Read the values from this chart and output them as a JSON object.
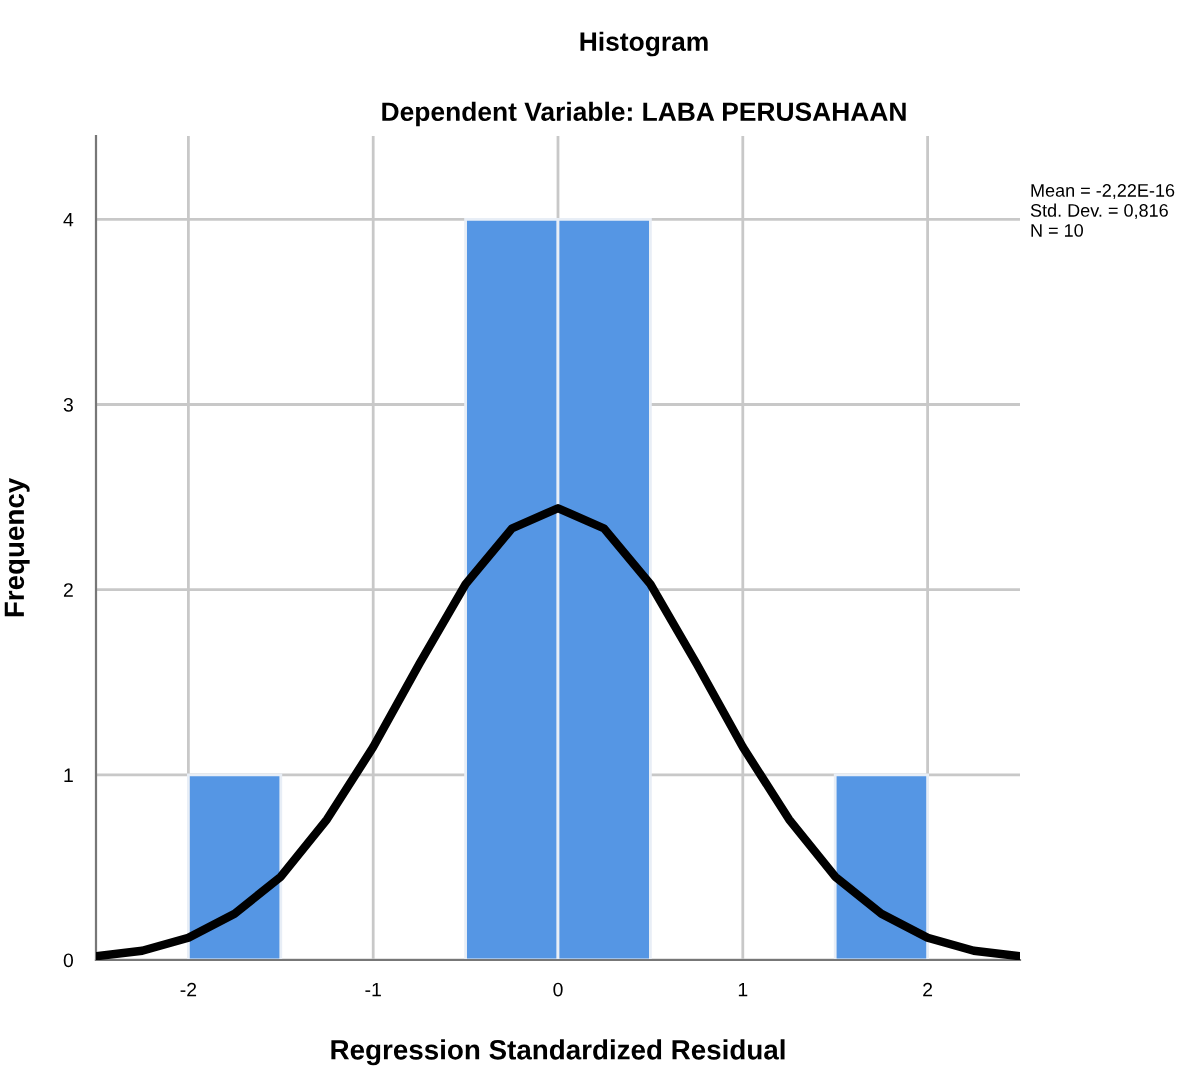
{
  "chart_data": {
    "type": "histogram",
    "title": "Histogram",
    "subtitle": "Dependent Variable: LABA PERUSAHAAN",
    "xlabel": "Regression Standardized Residual",
    "ylabel": "Frequency",
    "bins": [
      -2,
      -1.5,
      -1,
      -0.5,
      0,
      0.5,
      1,
      1.5,
      2
    ],
    "series": [
      {
        "color": "#5596e4",
        "values": [
          1,
          0,
          0,
          4,
          4,
          0,
          0,
          1
        ]
      },
      {
        "type": "line",
        "color": "#000000",
        "x": [
          -2.5,
          -2.25,
          -2,
          -1.75,
          -1.5,
          -1.25,
          -1,
          -0.75,
          -0.5,
          -0.25,
          0,
          0.25,
          0.5,
          0.75,
          1,
          1.25,
          1.5,
          1.75,
          2,
          2.25,
          2.5
        ],
        "values": [
          0.02,
          0.05,
          0.12,
          0.25,
          0.45,
          0.76,
          1.15,
          1.6,
          2.03,
          2.33,
          2.44,
          2.33,
          2.03,
          1.6,
          1.15,
          0.76,
          0.45,
          0.25,
          0.12,
          0.05,
          0.02
        ]
      }
    ],
    "xlim": [
      -2.5,
      2.5
    ],
    "ylim": [
      0,
      4.45
    ],
    "xticks": [
      -2,
      -1,
      0,
      1,
      2
    ],
    "yticks": [
      0,
      1,
      2,
      3,
      4
    ],
    "grid": true,
    "legend": false,
    "annotations": [
      "Mean = -2,22E-16",
      "Std. Dev. = 0,816",
      "N = 10"
    ]
  }
}
